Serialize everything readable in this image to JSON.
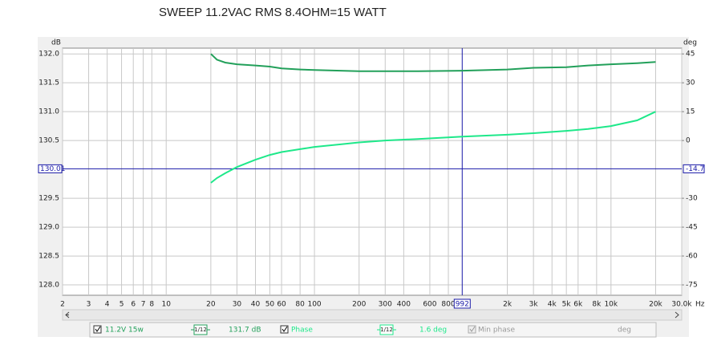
{
  "chart_data": {
    "type": "line",
    "title": "SWEEP 11.2VAC RMS 8.4OHM=15 WATT",
    "y_unit": "dB",
    "y2_unit": "deg",
    "x_unit": "Hz",
    "xscale": "log",
    "xlim": [
      2,
      30000
    ],
    "xticks": [
      2,
      3,
      4,
      5,
      6,
      7,
      8,
      10,
      20,
      30,
      40,
      50,
      60,
      80,
      100,
      200,
      300,
      400,
      600,
      800,
      {
        "value": 2000,
        "label": "2k"
      },
      {
        "value": 3000,
        "label": "3k"
      },
      {
        "value": 4000,
        "label": "4k"
      },
      {
        "value": 5000,
        "label": "5k"
      },
      {
        "value": 6000,
        "label": "6k"
      },
      {
        "value": 8000,
        "label": "8k"
      },
      {
        "value": 10000,
        "label": "10k"
      },
      {
        "value": 20000,
        "label": "20k"
      },
      {
        "value": 30000,
        "label": "30.0k"
      }
    ],
    "ylim": [
      127.82,
      132.1
    ],
    "yticks": [
      {
        "value": 132,
        "label": "132.0"
      },
      131.5,
      {
        "value": 131,
        "label": "131.0"
      },
      130.5,
      129.5,
      {
        "value": 129,
        "label": "129.0"
      },
      128.5,
      {
        "value": 128,
        "label": "128.0"
      }
    ],
    "y2lim": [
      -80.4,
      48
    ],
    "y2ticks": [
      45,
      30,
      15,
      0,
      -30,
      -45,
      -60,
      -75
    ],
    "grid": true,
    "cursor": {
      "x": 992,
      "y": 130.01,
      "y2": -14.7,
      "color": "#1a1aa8"
    },
    "x": [
      20,
      22,
      25,
      30,
      40,
      50,
      60,
      80,
      100,
      150,
      200,
      300,
      500,
      1000,
      2000,
      3000,
      5000,
      7000,
      10000,
      15000,
      20000
    ],
    "series": [
      {
        "name": "11.2V 15w",
        "color": "#22a05a",
        "smoothing": "1/12",
        "readout": "131.7 dB",
        "values": [
          132.0,
          131.9,
          131.85,
          131.82,
          131.8,
          131.78,
          131.75,
          131.73,
          131.72,
          131.71,
          131.7,
          131.7,
          131.7,
          131.71,
          131.73,
          131.76,
          131.77,
          131.8,
          131.82,
          131.84,
          131.86
        ]
      },
      {
        "name": "Phase",
        "color": "#1ee88a",
        "axis": "y2",
        "smoothing": "1/12",
        "readout": "1.6 deg",
        "values": [
          -22,
          -19.5,
          -17,
          -13.8,
          -10,
          -7.5,
          -6,
          -4.5,
          -3.3,
          -2,
          -1,
          0,
          0.8,
          2,
          3,
          3.8,
          5,
          6,
          7.5,
          10.5,
          15
        ]
      }
    ],
    "extra_legend": {
      "name": "Min phase",
      "unit": "deg"
    }
  }
}
